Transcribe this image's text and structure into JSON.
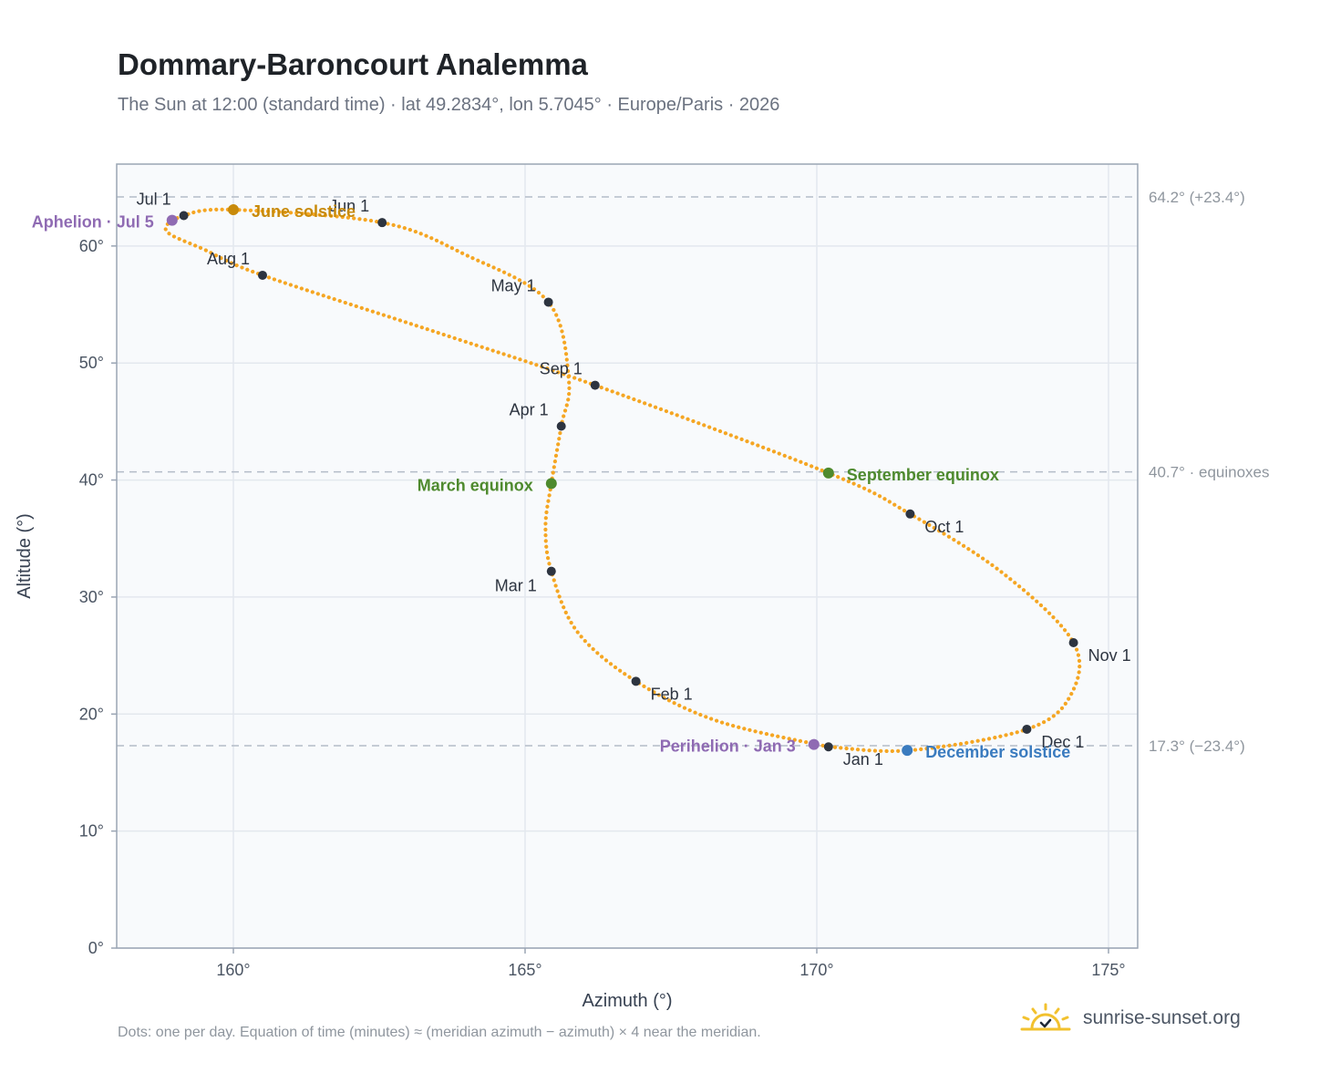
{
  "header": {
    "title": "Dommary-Baroncourt Analemma",
    "subtitle": "The Sun at 12:00 (standard time) · lat 49.2834°, lon 5.7045° · Europe/Paris · 2026"
  },
  "footer": {
    "note": "Dots: one per day. Equation of time (minutes) ≈ (meridian azimuth − azimuth) × 4 near the meridian.",
    "brand": "sunrise-sunset.org",
    "brand_icon": "sun-check-icon"
  },
  "colors": {
    "curve": "#f5a623",
    "month_marker": "#2d3440",
    "solstice_june": "#c88a0a",
    "solstice_december": "#3a7bbf",
    "equinox": "#4e8a2e",
    "apsis": "#8f6bb3",
    "reference_line": "#b4bcc8",
    "plot_background": "#f8fafc"
  },
  "chart_data": {
    "type": "scatter",
    "xlabel": "Azimuth (°)",
    "ylabel": "Altitude (°)",
    "xlim": [
      158,
      175.5
    ],
    "ylim": [
      0,
      67
    ],
    "xticks": [
      160,
      165,
      170,
      175
    ],
    "xtick_labels": [
      "160°",
      "165°",
      "170°",
      "175°"
    ],
    "yticks": [
      0,
      10,
      20,
      30,
      40,
      50,
      60
    ],
    "ytick_labels": [
      "0°",
      "10°",
      "20°",
      "30°",
      "40°",
      "50°",
      "60°"
    ],
    "grid": true,
    "curve_anchors": [
      {
        "x": 170.2,
        "y": 17.2
      },
      {
        "x": 168.3,
        "y": 19.4
      },
      {
        "x": 166.9,
        "y": 22.8
      },
      {
        "x": 165.9,
        "y": 27.0
      },
      {
        "x": 165.45,
        "y": 32.2
      },
      {
        "x": 165.35,
        "y": 36.0
      },
      {
        "x": 165.45,
        "y": 39.7
      },
      {
        "x": 165.62,
        "y": 44.6
      },
      {
        "x": 165.75,
        "y": 48.5
      },
      {
        "x": 165.4,
        "y": 55.2
      },
      {
        "x": 164.0,
        "y": 59.2
      },
      {
        "x": 162.55,
        "y": 62.0
      },
      {
        "x": 160.0,
        "y": 63.1
      },
      {
        "x": 159.15,
        "y": 62.6
      },
      {
        "x": 158.85,
        "y": 61.3
      },
      {
        "x": 159.5,
        "y": 59.7
      },
      {
        "x": 160.5,
        "y": 57.5
      },
      {
        "x": 163.5,
        "y": 52.6
      },
      {
        "x": 166.2,
        "y": 48.1
      },
      {
        "x": 170.2,
        "y": 40.6
      },
      {
        "x": 171.6,
        "y": 37.1
      },
      {
        "x": 173.2,
        "y": 32.0
      },
      {
        "x": 174.4,
        "y": 26.1
      },
      {
        "x": 174.35,
        "y": 21.6
      },
      {
        "x": 173.6,
        "y": 18.7
      },
      {
        "x": 171.6,
        "y": 16.9
      },
      {
        "x": 170.2,
        "y": 17.2
      }
    ],
    "month_markers": [
      {
        "label": "Jan 1",
        "x": 170.2,
        "y": 17.2,
        "label_pos": "below-right"
      },
      {
        "label": "Feb 1",
        "x": 166.9,
        "y": 22.8,
        "label_pos": "below-right"
      },
      {
        "label": "Mar 1",
        "x": 165.45,
        "y": 32.2,
        "label_pos": "below-left"
      },
      {
        "label": "Apr 1",
        "x": 165.62,
        "y": 44.6,
        "label_pos": "above-left"
      },
      {
        "label": "May 1",
        "x": 165.4,
        "y": 55.2,
        "label_pos": "above-left"
      },
      {
        "label": "Jun 1",
        "x": 162.55,
        "y": 62.0,
        "label_pos": "above-left"
      },
      {
        "label": "Jul 1",
        "x": 159.15,
        "y": 62.6,
        "label_pos": "above-left"
      },
      {
        "label": "Aug 1",
        "x": 160.5,
        "y": 57.5,
        "label_pos": "above-left"
      },
      {
        "label": "Sep 1",
        "x": 166.2,
        "y": 48.1,
        "label_pos": "above-left"
      },
      {
        "label": "Oct 1",
        "x": 171.6,
        "y": 37.1,
        "label_pos": "below-right"
      },
      {
        "label": "Nov 1",
        "x": 174.4,
        "y": 26.1,
        "label_pos": "below-right"
      },
      {
        "label": "Dec 1",
        "x": 173.6,
        "y": 18.7,
        "label_pos": "below-right"
      }
    ],
    "special_points": [
      {
        "label": "June solstice",
        "x": 160.0,
        "y": 63.1,
        "kind": "solstice_june",
        "label_pos": "right"
      },
      {
        "label": "December solstice",
        "x": 171.55,
        "y": 16.9,
        "kind": "solstice_december",
        "label_pos": "right"
      },
      {
        "label": "March equinox",
        "x": 165.45,
        "y": 39.7,
        "kind": "equinox",
        "label_pos": "left"
      },
      {
        "label": "September equinox",
        "x": 170.2,
        "y": 40.6,
        "kind": "equinox",
        "label_pos": "right"
      },
      {
        "label": "Aphelion · Jul 5",
        "x": 158.95,
        "y": 62.2,
        "kind": "apsis",
        "label_pos": "left"
      },
      {
        "label": "Perihelion · Jan 3",
        "x": 169.95,
        "y": 17.4,
        "kind": "apsis",
        "label_pos": "left"
      }
    ],
    "reference_lines": [
      {
        "y": 64.2,
        "label": "64.2° (+23.4°)"
      },
      {
        "y": 40.7,
        "label": "40.7° · equinoxes"
      },
      {
        "y": 17.3,
        "label": "17.3° (−23.4°)"
      }
    ]
  }
}
